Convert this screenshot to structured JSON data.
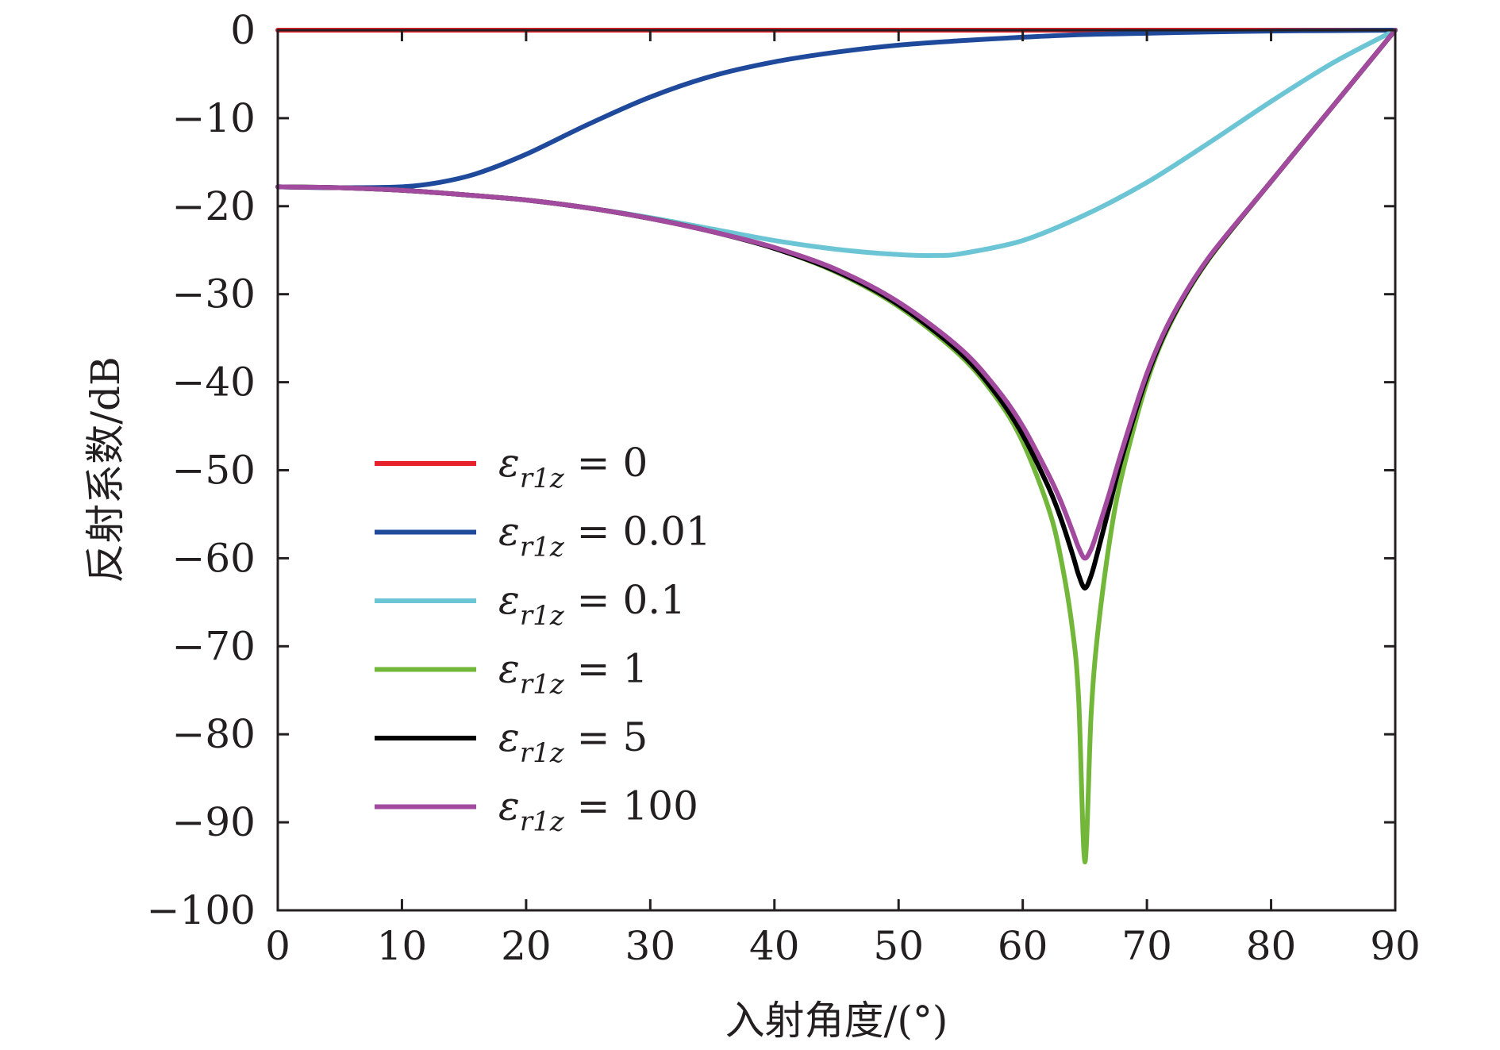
{
  "chart_data": {
    "type": "line",
    "title": "",
    "xlabel": "入射角度/(°)",
    "ylabel": "反射系数/dB",
    "xlim": [
      0,
      90
    ],
    "ylim": [
      -100,
      0
    ],
    "xticks": [
      0,
      10,
      20,
      30,
      40,
      50,
      60,
      70,
      80,
      90
    ],
    "yticks": [
      0,
      -10,
      -20,
      -30,
      -40,
      -50,
      -60,
      -70,
      -80,
      -90,
      -100
    ],
    "xtick_labels": [
      "0",
      "10",
      "20",
      "30",
      "40",
      "50",
      "60",
      "70",
      "80",
      "90"
    ],
    "ytick_labels": [
      "0",
      "−10",
      "−20",
      "−30",
      "−40",
      "−50",
      "−60",
      "−70",
      "−80",
      "−90",
      "−100"
    ],
    "legend_position": "lower-left",
    "grid": false,
    "series": [
      {
        "name": "εr1z = 0",
        "symbol": "ε",
        "subscript": "r1z",
        "value_label": "= 0",
        "color": "#e8202a",
        "x": [
          0,
          90
        ],
        "y": [
          0,
          0
        ]
      },
      {
        "name": "εr1z = 0.01",
        "symbol": "ε",
        "subscript": "r1z",
        "value_label": "= 0.01",
        "color": "#1f4a9c",
        "x": [
          0,
          5,
          10,
          13,
          16,
          20,
          25,
          30,
          35,
          40,
          45,
          50,
          55,
          60,
          65,
          70,
          75,
          80,
          85,
          90
        ],
        "y": [
          -17.8,
          -17.9,
          -17.8,
          -17.3,
          -16.3,
          -14.1,
          -10.7,
          -7.6,
          -5.2,
          -3.6,
          -2.5,
          -1.7,
          -1.2,
          -0.8,
          -0.5,
          -0.35,
          -0.2,
          -0.1,
          -0.05,
          0
        ]
      },
      {
        "name": "εr1z = 0.1",
        "symbol": "ε",
        "subscript": "r1z",
        "value_label": "= 0.1",
        "color": "#6cc5d5",
        "x": [
          0,
          5,
          10,
          15,
          20,
          25,
          30,
          35,
          40,
          45,
          50,
          53,
          55,
          60,
          65,
          70,
          75,
          80,
          85,
          90
        ],
        "y": [
          -17.8,
          -17.9,
          -18.2,
          -18.7,
          -19.3,
          -20.2,
          -21.3,
          -22.6,
          -23.9,
          -24.9,
          -25.5,
          -25.6,
          -25.4,
          -23.9,
          -21.0,
          -17.3,
          -12.8,
          -8.1,
          -3.7,
          0
        ]
      },
      {
        "name": "εr1z = 1",
        "symbol": "ε",
        "subscript": "r1z",
        "value_label": "= 1",
        "color": "#72b73a",
        "x": [
          0,
          5,
          10,
          15,
          20,
          25,
          30,
          35,
          40,
          45,
          50,
          55,
          58,
          60,
          62,
          63,
          64,
          64.5,
          65,
          65.5,
          66,
          67,
          68,
          70,
          72,
          75,
          80,
          85,
          90
        ],
        "y": [
          -17.8,
          -17.9,
          -18.2,
          -18.7,
          -19.3,
          -20.2,
          -21.4,
          -22.9,
          -24.8,
          -27.5,
          -31.4,
          -37.0,
          -42.0,
          -46.8,
          -54.0,
          -59.5,
          -68.0,
          -76.0,
          -94.5,
          -78.0,
          -69.0,
          -58.0,
          -50.5,
          -40.0,
          -33.0,
          -26.0,
          -17.2,
          -8.6,
          0
        ]
      },
      {
        "name": "εr1z = 5",
        "symbol": "ε",
        "subscript": "r1z",
        "value_label": "= 5",
        "color": "#000000",
        "x": [
          0,
          5,
          10,
          15,
          20,
          25,
          30,
          35,
          40,
          45,
          50,
          55,
          58,
          60,
          62,
          63,
          64,
          64.5,
          65,
          65.5,
          66,
          67,
          68,
          70,
          72,
          75,
          80,
          85,
          90
        ],
        "y": [
          -17.8,
          -17.9,
          -18.2,
          -18.7,
          -19.3,
          -20.2,
          -21.4,
          -22.9,
          -24.8,
          -27.4,
          -31.2,
          -36.7,
          -41.6,
          -46.0,
          -51.7,
          -55.2,
          -59.5,
          -61.9,
          -63.4,
          -62.0,
          -59.5,
          -54.0,
          -48.5,
          -39.4,
          -32.8,
          -25.9,
          -17.2,
          -8.6,
          0
        ]
      },
      {
        "name": "εr1z = 100",
        "symbol": "ε",
        "subscript": "r1z",
        "value_label": "= 100",
        "color": "#a24a9e",
        "x": [
          0,
          5,
          10,
          15,
          20,
          25,
          30,
          35,
          40,
          45,
          50,
          55,
          58,
          60,
          62,
          63,
          64,
          64.5,
          65,
          65.5,
          66,
          67,
          68,
          70,
          72,
          75,
          80,
          85,
          90
        ],
        "y": [
          -17.8,
          -17.9,
          -18.2,
          -18.7,
          -19.3,
          -20.2,
          -21.4,
          -22.9,
          -24.7,
          -27.2,
          -30.9,
          -36.2,
          -40.9,
          -45.0,
          -50.3,
          -53.3,
          -56.9,
          -58.8,
          -60.0,
          -59.0,
          -57.0,
          -52.5,
          -47.7,
          -39.0,
          -32.6,
          -25.8,
          -17.2,
          -8.6,
          0
        ]
      }
    ]
  }
}
